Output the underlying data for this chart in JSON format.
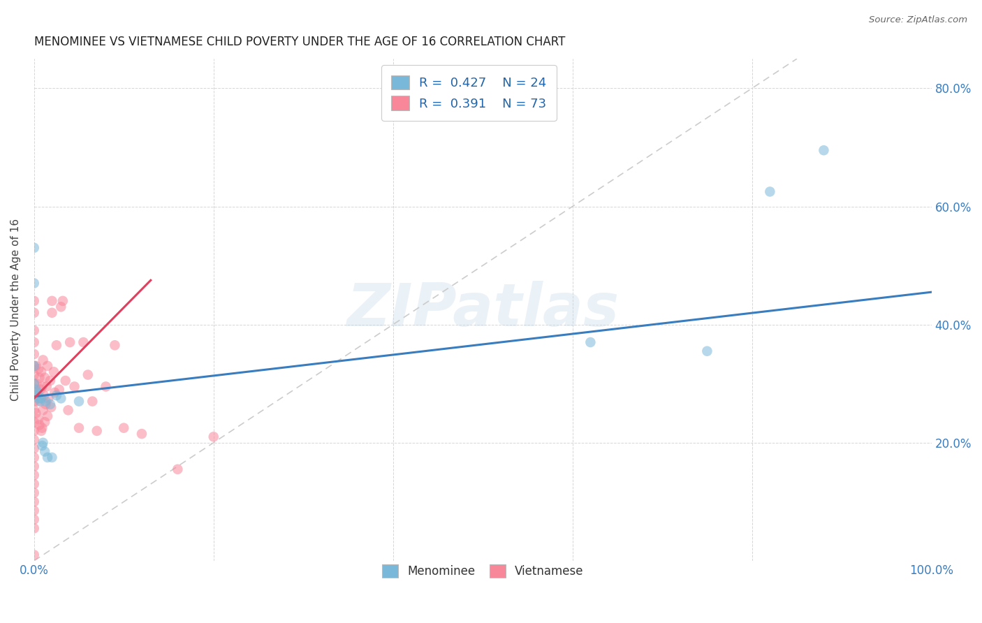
{
  "title": "MENOMINEE VS VIETNAMESE CHILD POVERTY UNDER THE AGE OF 16 CORRELATION CHART",
  "source": "Source: ZipAtlas.com",
  "ylabel": "Child Poverty Under the Age of 16",
  "xlim": [
    0,
    1.0
  ],
  "ylim": [
    0,
    0.85
  ],
  "xticks": [
    0.0,
    0.2,
    0.4,
    0.6,
    0.8,
    1.0
  ],
  "xtick_labels": [
    "0.0%",
    "",
    "",
    "",
    "",
    "100.0%"
  ],
  "yticks": [
    0.2,
    0.4,
    0.6,
    0.8
  ],
  "ytick_labels": [
    "20.0%",
    "40.0%",
    "60.0%",
    "80.0%"
  ],
  "menominee_color": "#7ab8d9",
  "vietnamese_color": "#f8879a",
  "menominee_line_color": "#3a7dbf",
  "vietnamese_line_color": "#e0405e",
  "diagonal_color": "#cccccc",
  "R_menominee": 0.427,
  "N_menominee": 24,
  "R_vietnamese": 0.391,
  "N_vietnamese": 73,
  "menominee_line_x0": 0.0,
  "menominee_line_y0": 0.278,
  "menominee_line_x1": 1.0,
  "menominee_line_y1": 0.455,
  "vietnamese_line_x0": 0.0,
  "vietnamese_line_y0": 0.275,
  "vietnamese_line_x1": 0.13,
  "vietnamese_line_y1": 0.475,
  "menominee_x": [
    0.0,
    0.0,
    0.0,
    0.0,
    0.002,
    0.003,
    0.004,
    0.005,
    0.007,
    0.008,
    0.009,
    0.01,
    0.012,
    0.013,
    0.015,
    0.018,
    0.02,
    0.025,
    0.03,
    0.05,
    0.62,
    0.75,
    0.82,
    0.88
  ],
  "menominee_y": [
    0.53,
    0.47,
    0.33,
    0.3,
    0.29,
    0.28,
    0.285,
    0.275,
    0.27,
    0.275,
    0.195,
    0.2,
    0.185,
    0.27,
    0.175,
    0.265,
    0.175,
    0.28,
    0.275,
    0.27,
    0.37,
    0.355,
    0.625,
    0.695
  ],
  "vietnamese_x": [
    0.0,
    0.0,
    0.0,
    0.0,
    0.0,
    0.0,
    0.0,
    0.0,
    0.0,
    0.0,
    0.0,
    0.0,
    0.0,
    0.0,
    0.0,
    0.0,
    0.0,
    0.0,
    0.0,
    0.0,
    0.0,
    0.0,
    0.0,
    0.0,
    0.0,
    0.002,
    0.002,
    0.003,
    0.004,
    0.005,
    0.005,
    0.006,
    0.006,
    0.007,
    0.008,
    0.008,
    0.009,
    0.009,
    0.01,
    0.01,
    0.011,
    0.012,
    0.012,
    0.013,
    0.014,
    0.015,
    0.015,
    0.016,
    0.018,
    0.019,
    0.02,
    0.02,
    0.022,
    0.023,
    0.025,
    0.028,
    0.03,
    0.032,
    0.035,
    0.038,
    0.04,
    0.045,
    0.05,
    0.055,
    0.06,
    0.065,
    0.07,
    0.08,
    0.09,
    0.1,
    0.12,
    0.16,
    0.2
  ],
  "vietnamese_y": [
    0.44,
    0.42,
    0.39,
    0.37,
    0.35,
    0.33,
    0.315,
    0.3,
    0.285,
    0.27,
    0.255,
    0.235,
    0.22,
    0.205,
    0.19,
    0.175,
    0.16,
    0.145,
    0.13,
    0.115,
    0.1,
    0.085,
    0.07,
    0.055,
    0.01,
    0.33,
    0.25,
    0.3,
    0.27,
    0.325,
    0.24,
    0.31,
    0.23,
    0.29,
    0.32,
    0.22,
    0.295,
    0.225,
    0.34,
    0.255,
    0.28,
    0.31,
    0.235,
    0.265,
    0.295,
    0.33,
    0.245,
    0.275,
    0.305,
    0.26,
    0.42,
    0.44,
    0.32,
    0.285,
    0.365,
    0.29,
    0.43,
    0.44,
    0.305,
    0.255,
    0.37,
    0.295,
    0.225,
    0.37,
    0.315,
    0.27,
    0.22,
    0.295,
    0.365,
    0.225,
    0.215,
    0.155,
    0.21
  ],
  "background_color": "#ffffff",
  "watermark": "ZIPatlas"
}
